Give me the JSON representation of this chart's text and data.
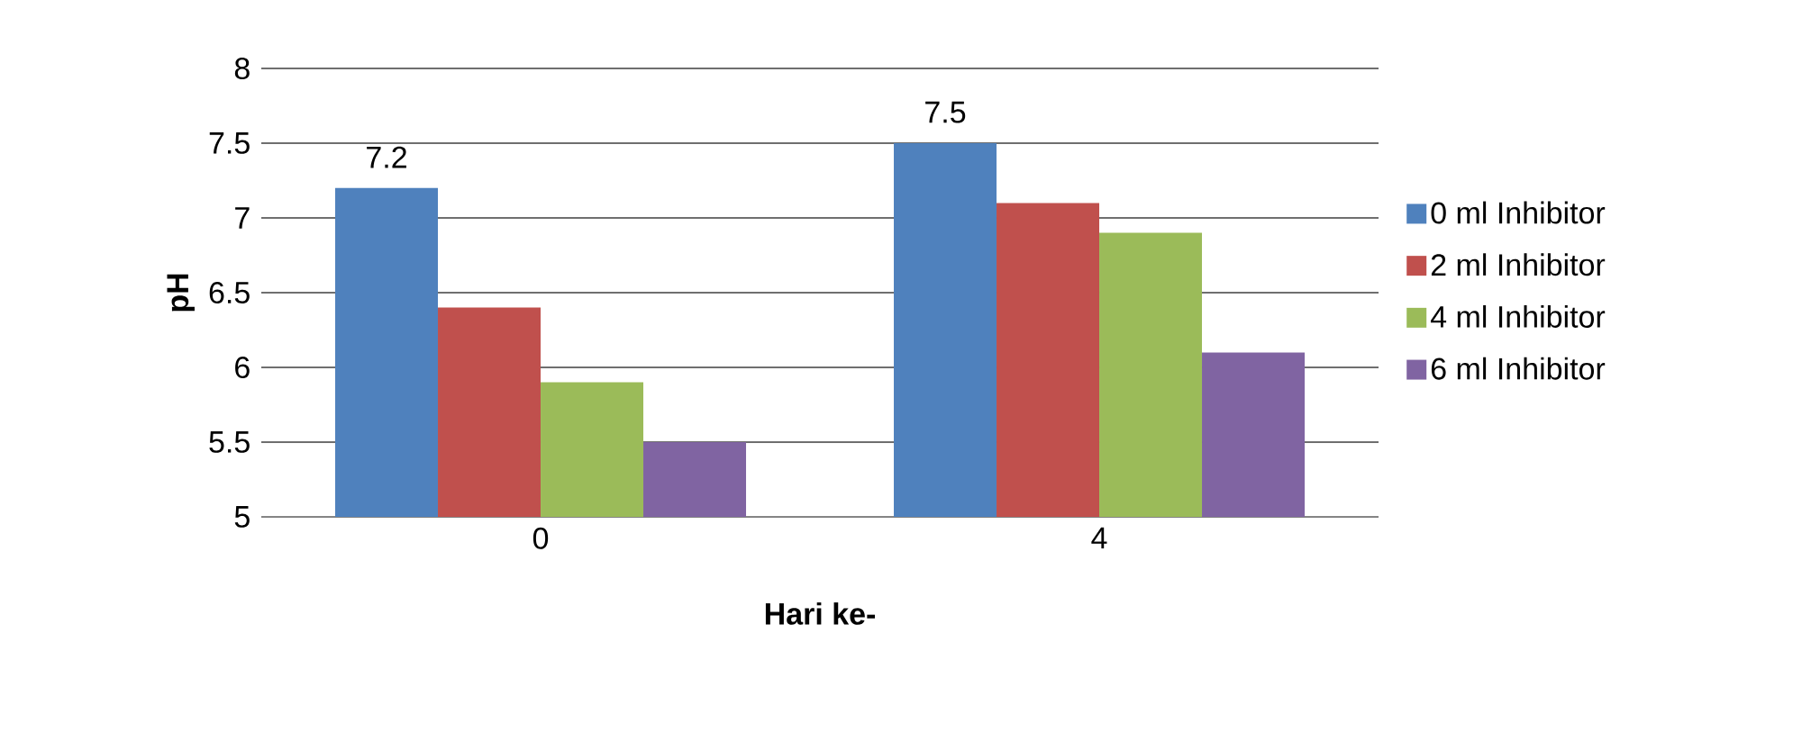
{
  "chart_data": {
    "type": "bar",
    "xlabel": "Hari ke-",
    "ylabel": "pH",
    "categories": [
      "0",
      "4"
    ],
    "series": [
      {
        "name": "0 ml Inhibitor",
        "color": "#4f81bd",
        "values": [
          7.2,
          7.5
        ],
        "value_labels": [
          "7.2",
          "7.5"
        ]
      },
      {
        "name": "2 ml Inhibitor",
        "color": "#c0504d",
        "values": [
          6.4,
          7.1
        ]
      },
      {
        "name": "4 ml Inhibitor",
        "color": "#9bbb59",
        "values": [
          5.9,
          6.9
        ]
      },
      {
        "name": "6 ml Inhibitor",
        "color": "#8064a2",
        "values": [
          5.5,
          6.1
        ]
      }
    ],
    "ylim": [
      5,
      8
    ],
    "yticks": [
      5,
      5.5,
      6,
      6.5,
      7,
      7.5,
      8
    ],
    "grid": "y",
    "legend": "right"
  }
}
